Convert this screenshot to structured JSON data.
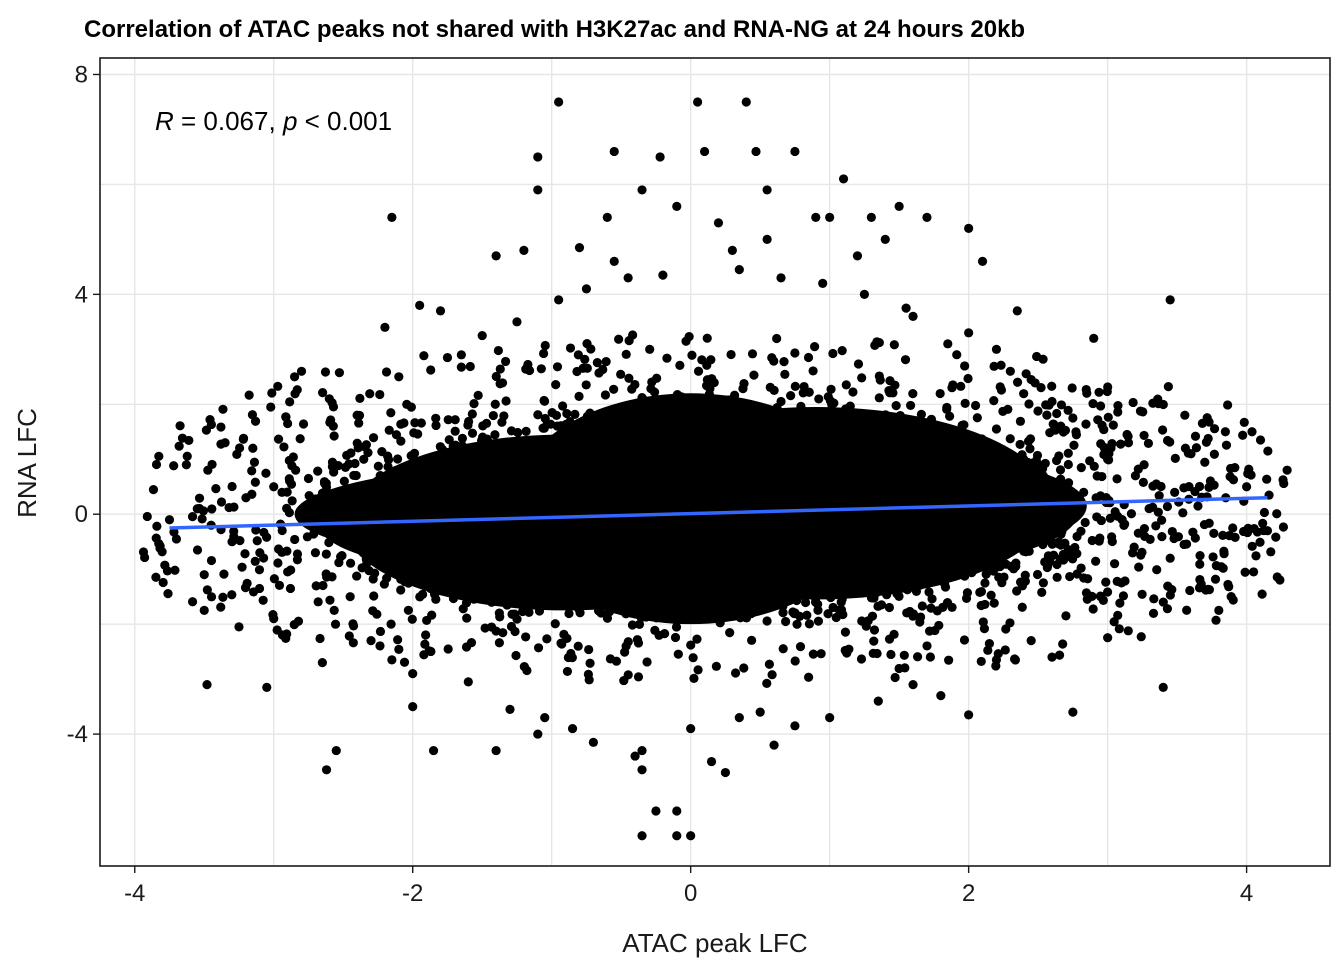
{
  "chart_data": {
    "type": "scatter",
    "title": "Correlation of ATAC peaks not shared with H3K27ac and RNA-NG at 24 hours 20kb",
    "xlabel": "ATAC peak LFC",
    "ylabel": "RNA LFC",
    "xlim": [
      -4.25,
      4.6
    ],
    "ylim": [
      -6.4,
      8.3
    ],
    "x_ticks": [
      -4,
      -2,
      0,
      2,
      4
    ],
    "y_ticks": [
      -4,
      0,
      4,
      8
    ],
    "x_tick_labels": [
      "-4",
      "-2",
      "0",
      "2",
      "4"
    ],
    "y_tick_labels": [
      "-4",
      "0",
      "4",
      "8"
    ],
    "grid": true,
    "annotation": {
      "r_label": "R",
      "r_text": " = 0.067, ",
      "p_label": "p",
      "p_text": " < 0.001"
    },
    "regression": {
      "x": [
        -3.75,
        4.15
      ],
      "y": [
        -0.25,
        0.3
      ]
    },
    "series": [
      {
        "points": [
          [
            -0.95,
            7.5
          ],
          [
            0.05,
            7.5
          ],
          [
            0.4,
            7.5
          ],
          [
            -0.55,
            6.6
          ],
          [
            -1.1,
            6.5
          ],
          [
            0.1,
            6.6
          ],
          [
            -0.22,
            6.5
          ],
          [
            0.47,
            6.6
          ],
          [
            0.75,
            6.6
          ],
          [
            1.1,
            6.1
          ],
          [
            -1.1,
            5.9
          ],
          [
            -0.35,
            5.9
          ],
          [
            0.55,
            5.9
          ],
          [
            1.0,
            5.4
          ],
          [
            -2.15,
            5.4
          ],
          [
            0.9,
            5.4
          ],
          [
            1.3,
            5.4
          ],
          [
            1.7,
            5.4
          ],
          [
            -0.6,
            5.4
          ],
          [
            -0.1,
            5.6
          ],
          [
            0.2,
            5.3
          ],
          [
            1.5,
            5.6
          ],
          [
            2.0,
            5.2
          ],
          [
            1.4,
            5.0
          ],
          [
            -1.2,
            4.8
          ],
          [
            -0.55,
            4.6
          ],
          [
            0.3,
            4.8
          ],
          [
            1.2,
            4.7
          ],
          [
            -1.4,
            4.7
          ],
          [
            2.1,
            4.6
          ],
          [
            -1.8,
            3.7
          ],
          [
            -2.2,
            3.4
          ],
          [
            -1.95,
            3.8
          ],
          [
            2.35,
            3.7
          ],
          [
            2.9,
            3.2
          ],
          [
            3.45,
            3.9
          ],
          [
            -2.8,
            2.6
          ],
          [
            -2.85,
            2.5
          ],
          [
            -3.35,
            1.3
          ],
          [
            -3.0,
            0.5
          ],
          [
            -3.55,
            0.1
          ],
          [
            -3.75,
            -0.1
          ],
          [
            -3.7,
            -0.45
          ],
          [
            -3.5,
            -1.1
          ],
          [
            -3.5,
            -1.75
          ],
          [
            -3.25,
            -2.05
          ],
          [
            -3.0,
            -1.9
          ],
          [
            -3.48,
            -3.1
          ],
          [
            -3.05,
            -3.15
          ],
          [
            -2.65,
            -2.7
          ],
          [
            -2.55,
            -4.3
          ],
          [
            -2.62,
            -4.65
          ],
          [
            -1.4,
            -4.3
          ],
          [
            -1.85,
            -4.3
          ],
          [
            -0.7,
            -4.15
          ],
          [
            -0.35,
            -4.3
          ],
          [
            -0.35,
            -4.65
          ],
          [
            0.25,
            -4.7
          ],
          [
            -0.1,
            -5.4
          ],
          [
            -0.25,
            -5.4
          ],
          [
            -0.1,
            -5.85
          ],
          [
            -0.35,
            -5.85
          ],
          [
            0.0,
            -5.85
          ],
          [
            0.6,
            -4.2
          ],
          [
            0.5,
            -3.6
          ],
          [
            0.0,
            -3.9
          ],
          [
            2.75,
            -3.6
          ],
          [
            2.0,
            -3.65
          ],
          [
            3.4,
            -3.15
          ],
          [
            3.8,
            -1.75
          ],
          [
            3.55,
            -0.55
          ],
          [
            4.1,
            1.35
          ],
          [
            4.15,
            -0.3
          ],
          [
            4.0,
            0.5
          ],
          [
            3.85,
            0.3
          ],
          [
            3.9,
            -0.25
          ],
          [
            3.6,
            1.1
          ],
          [
            3.15,
            1.3
          ],
          [
            3.2,
            0.7
          ],
          [
            3.35,
            0.55
          ],
          [
            3.45,
            -0.8
          ],
          [
            3.1,
            -1.25
          ],
          [
            2.7,
            -1.85
          ],
          [
            2.85,
            2.2
          ],
          [
            2.6,
            2.05
          ],
          [
            2.3,
            2.6
          ],
          [
            2.0,
            3.3
          ],
          [
            1.6,
            3.6
          ],
          [
            1.85,
            3.1
          ],
          [
            -2.4,
            1.8
          ],
          [
            -2.6,
            2.1
          ],
          [
            -2.9,
            1.65
          ],
          [
            -2.75,
            0.65
          ],
          [
            -2.45,
            0.3
          ],
          [
            -2.7,
            -0.7
          ],
          [
            -2.9,
            -1.05
          ],
          [
            -3.1,
            -0.7
          ],
          [
            -2.45,
            -1.5
          ],
          [
            -2.3,
            -2.3
          ],
          [
            -2.15,
            -2.65
          ],
          [
            -2.0,
            -3.5
          ],
          [
            -1.6,
            -3.05
          ],
          [
            -1.3,
            -3.55
          ],
          [
            -1.05,
            -3.7
          ],
          [
            -0.85,
            -3.9
          ],
          [
            0.35,
            -3.7
          ],
          [
            1.0,
            -3.7
          ],
          [
            1.35,
            -3.4
          ],
          [
            1.6,
            -3.1
          ],
          [
            2.2,
            -2.65
          ],
          [
            2.45,
            -2.3
          ],
          [
            -1.5,
            3.25
          ],
          [
            -1.25,
            3.5
          ],
          [
            -0.95,
            3.9
          ],
          [
            -0.75,
            4.1
          ],
          [
            -0.45,
            4.3
          ],
          [
            -0.2,
            4.35
          ],
          [
            0.35,
            4.45
          ],
          [
            0.65,
            4.3
          ],
          [
            0.95,
            4.2
          ],
          [
            1.25,
            4.0
          ],
          [
            1.55,
            3.75
          ],
          [
            -2.1,
            2.5
          ],
          [
            -1.75,
            2.85
          ],
          [
            2.45,
            2.45
          ],
          [
            2.75,
            1.75
          ],
          [
            3.0,
            1.0
          ],
          [
            -3.3,
            -0.5
          ],
          [
            -3.2,
            0.3
          ],
          [
            3.05,
            -0.9
          ],
          [
            2.95,
            -1.5
          ],
          [
            -2.0,
            -2.9
          ],
          [
            -1.1,
            -4.0
          ],
          [
            0.75,
            -3.85
          ],
          [
            1.8,
            -3.3
          ],
          [
            2.6,
            -2.6
          ],
          [
            -0.8,
            4.85
          ],
          [
            0.55,
            5.0
          ],
          [
            -1.65,
            2.9
          ],
          [
            2.2,
            3.0
          ],
          [
            -3.45,
            -0.2
          ],
          [
            3.65,
            0.15
          ],
          [
            -0.4,
            -4.4
          ],
          [
            0.15,
            -4.5
          ]
        ]
      }
    ]
  }
}
